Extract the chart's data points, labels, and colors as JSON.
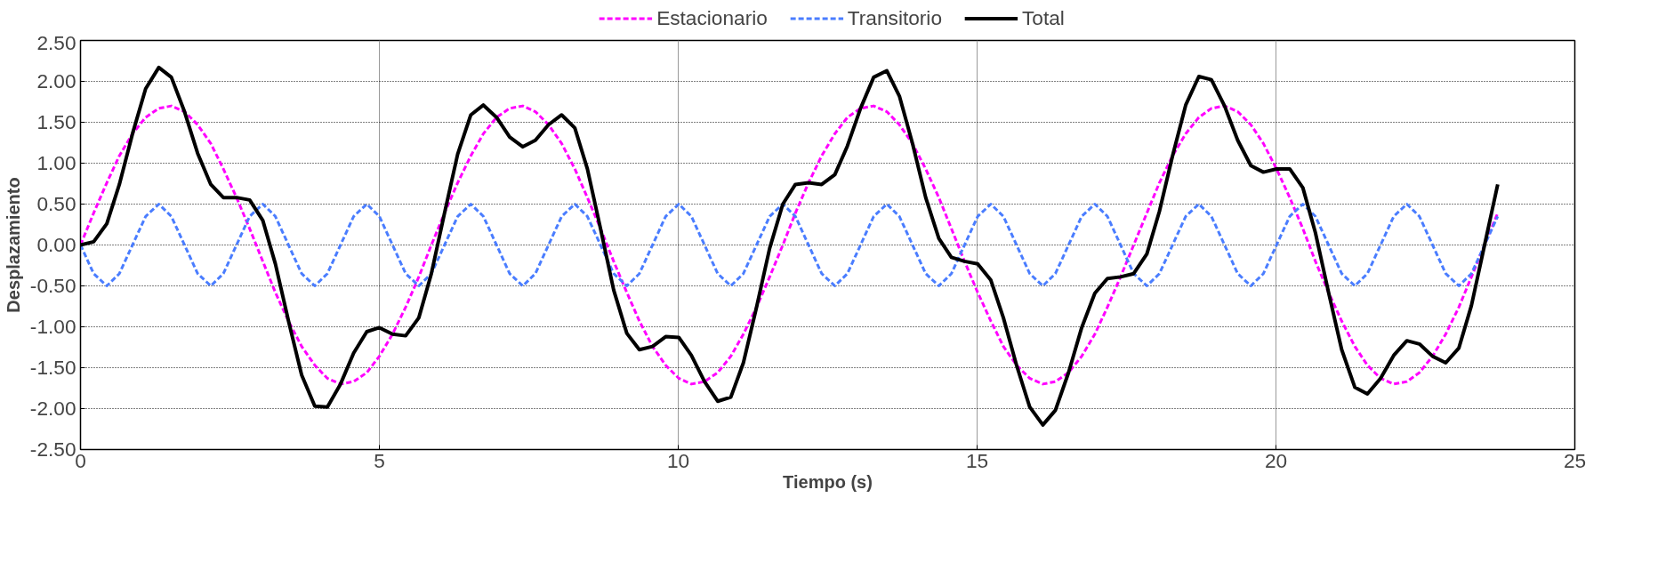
{
  "chart_data": {
    "type": "line",
    "xlabel": "Tiempo (s)",
    "ylabel": "Desplazamiento",
    "xlim": [
      0,
      25
    ],
    "ylim": [
      -2.5,
      2.5
    ],
    "xticks": [
      0,
      5,
      10,
      15,
      20,
      25
    ],
    "yticks": [
      {
        "value": -2.5,
        "label": "-2.50"
      },
      {
        "value": -2.0,
        "label": "-2.00"
      },
      {
        "value": -1.5,
        "label": "-1.50"
      },
      {
        "value": -1.0,
        "label": "-1.00"
      },
      {
        "value": -0.5,
        "label": "-0.50"
      },
      {
        "value": 0,
        "label": "0.00"
      },
      {
        "value": 0.5,
        "label": "0.50"
      },
      {
        "value": 1.0,
        "label": "1.00"
      },
      {
        "value": 1.5,
        "label": "1.50"
      },
      {
        "value": 2.0,
        "label": "2.00"
      },
      {
        "value": 2.5,
        "label": "2.50"
      }
    ],
    "grid": true,
    "legend": "top",
    "marker": "none",
    "x": [
      0.0,
      0.22,
      0.44,
      0.65,
      0.87,
      1.09,
      1.31,
      1.52,
      1.74,
      1.96,
      2.18,
      2.39,
      2.61,
      2.83,
      3.05,
      3.26,
      3.48,
      3.7,
      3.92,
      4.13,
      4.35,
      4.57,
      4.79,
      5.0,
      5.22,
      5.44,
      5.66,
      5.87,
      6.09,
      6.31,
      6.53,
      6.74,
      6.96,
      7.18,
      7.4,
      7.61,
      7.83,
      8.05,
      8.27,
      8.48,
      8.7,
      8.92,
      9.14,
      9.35,
      9.57,
      9.79,
      10.01,
      10.22,
      10.44,
      10.66,
      10.88,
      11.09,
      11.31,
      11.53,
      11.75,
      11.96,
      12.18,
      12.4,
      12.62,
      12.83,
      13.05,
      13.27,
      13.49,
      13.7,
      13.92,
      14.14,
      14.36,
      14.57,
      14.79,
      15.01,
      15.23,
      15.44,
      15.66,
      15.88,
      16.1,
      16.31,
      16.53,
      16.75,
      16.97,
      17.18,
      17.4,
      17.62,
      17.84,
      18.05,
      18.27,
      18.49,
      18.71,
      18.92,
      19.14,
      19.36,
      19.58,
      19.79,
      20.01,
      20.23,
      20.45,
      20.66,
      20.88,
      21.1,
      21.32,
      21.53,
      21.75,
      21.97,
      22.19,
      22.4,
      22.62,
      22.84,
      23.06,
      23.27,
      23.49,
      23.71
    ],
    "series": [
      {
        "name": "Estacionario",
        "color": "#ff00ff",
        "line_style": "dashed",
        "values": [
          0,
          0.39,
          0.76,
          1.09,
          1.36,
          1.56,
          1.67,
          1.7,
          1.63,
          1.47,
          1.24,
          0.93,
          0.58,
          0.2,
          -0.2,
          -0.58,
          -0.93,
          -1.24,
          -1.47,
          -1.63,
          -1.7,
          -1.67,
          -1.56,
          -1.36,
          -1.09,
          -0.76,
          -0.39,
          0,
          0.39,
          0.76,
          1.09,
          1.36,
          1.56,
          1.67,
          1.7,
          1.63,
          1.47,
          1.24,
          0.93,
          0.58,
          0.2,
          -0.2,
          -0.58,
          -0.93,
          -1.24,
          -1.47,
          -1.63,
          -1.7,
          -1.67,
          -1.56,
          -1.36,
          -1.09,
          -0.76,
          -0.39,
          0,
          0.39,
          0.76,
          1.09,
          1.36,
          1.56,
          1.67,
          1.7,
          1.63,
          1.47,
          1.24,
          0.93,
          0.58,
          0.2,
          -0.2,
          -0.58,
          -0.93,
          -1.24,
          -1.47,
          -1.63,
          -1.7,
          -1.67,
          -1.56,
          -1.36,
          -1.09,
          -0.76,
          -0.39,
          0,
          0.39,
          0.76,
          1.09,
          1.36,
          1.56,
          1.67,
          1.7,
          1.63,
          1.47,
          1.24,
          0.93,
          0.58,
          0.2,
          -0.2,
          -0.58,
          -0.93,
          -1.24,
          -1.47,
          -1.63,
          -1.7,
          -1.67,
          -1.56,
          -1.36,
          -1.09,
          -0.76,
          -0.39,
          0,
          0.39
        ]
      },
      {
        "name": "Transitorio",
        "color": "#4a7dff",
        "line_style": "dashed",
        "values": [
          0,
          -0.35,
          -0.5,
          -0.35,
          0,
          0.35,
          0.5,
          0.35,
          0,
          -0.35,
          -0.5,
          -0.35,
          0,
          0.35,
          0.5,
          0.35,
          0,
          -0.35,
          -0.5,
          -0.35,
          0,
          0.35,
          0.5,
          0.35,
          0,
          -0.35,
          -0.5,
          -0.35,
          0,
          0.35,
          0.5,
          0.35,
          0,
          -0.35,
          -0.5,
          -0.35,
          0,
          0.35,
          0.5,
          0.35,
          0,
          -0.35,
          -0.5,
          -0.35,
          0,
          0.35,
          0.5,
          0.35,
          0,
          -0.35,
          -0.5,
          -0.35,
          0,
          0.35,
          0.5,
          0.35,
          0,
          -0.35,
          -0.5,
          -0.35,
          0,
          0.35,
          0.5,
          0.35,
          0,
          -0.35,
          -0.5,
          -0.35,
          0,
          0.35,
          0.5,
          0.35,
          0,
          -0.35,
          -0.5,
          -0.35,
          0,
          0.35,
          0.5,
          0.35,
          0,
          -0.35,
          -0.5,
          -0.35,
          0,
          0.35,
          0.5,
          0.35,
          0,
          -0.35,
          -0.5,
          -0.35,
          0,
          0.35,
          0.5,
          0.35,
          0,
          -0.35,
          -0.5,
          -0.35,
          0,
          0.35,
          0.5,
          0.35,
          0,
          -0.35,
          -0.5,
          -0.35,
          0,
          0.35
        ]
      },
      {
        "name": "Total",
        "color": "#000000",
        "line_style": "solid",
        "values": [
          0,
          0.04,
          0.26,
          0.74,
          1.36,
          1.91,
          2.17,
          2.05,
          1.63,
          1.12,
          0.74,
          0.58,
          0.58,
          0.55,
          0.3,
          -0.23,
          -0.93,
          -1.59,
          -1.97,
          -1.98,
          -1.7,
          -1.32,
          -1.06,
          -1.01,
          -1.09,
          -1.11,
          -0.89,
          -0.35,
          0.39,
          1.11,
          1.59,
          1.71,
          1.56,
          1.32,
          1.2,
          1.28,
          1.47,
          1.59,
          1.43,
          0.93,
          0.2,
          -0.55,
          -1.08,
          -1.28,
          -1.24,
          -1.12,
          -1.13,
          -1.35,
          -1.67,
          -1.91,
          -1.86,
          -1.44,
          -0.76,
          -0.04,
          0.5,
          0.74,
          0.76,
          0.74,
          0.86,
          1.21,
          1.67,
          2.05,
          2.13,
          1.82,
          1.24,
          0.58,
          0.08,
          -0.15,
          -0.2,
          -0.23,
          -0.43,
          -0.89,
          -1.47,
          -1.98,
          -2.2,
          -2.02,
          -1.56,
          -1.01,
          -0.59,
          -0.41,
          -0.39,
          -0.35,
          -0.11,
          0.41,
          1.09,
          1.71,
          2.06,
          2.02,
          1.7,
          1.28,
          0.97,
          0.89,
          0.93,
          0.93,
          0.7,
          0.15,
          -0.58,
          -1.28,
          -1.74,
          -1.82,
          -1.63,
          -1.35,
          -1.17,
          -1.21,
          -1.36,
          -1.44,
          -1.26,
          -0.74,
          0,
          0.74
        ]
      }
    ]
  }
}
